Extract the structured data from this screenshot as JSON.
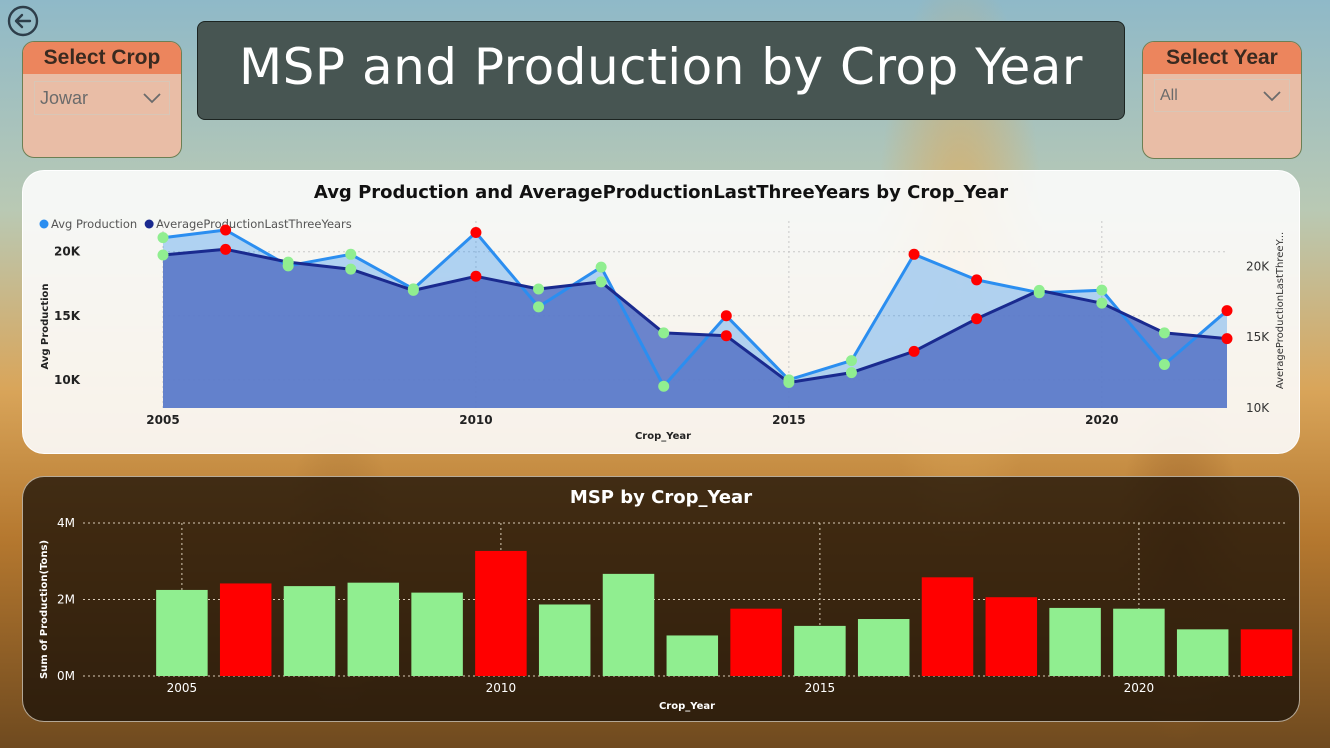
{
  "filters": {
    "crop": {
      "label": "Select Crop",
      "value": "Jowar"
    },
    "year": {
      "label": "Select Year",
      "value": "All"
    }
  },
  "header": {
    "title": "MSP and Production by Crop Year"
  },
  "colors": {
    "avg_production": "#2b8ef0",
    "avg_last_three": "#1a2a8f",
    "area_fill": "#5b78c8",
    "good": "#90ee90",
    "bad": "#ff0000"
  },
  "chart_data": [
    {
      "type": "line",
      "title": "Avg Production and AverageProductionLastThreeYears by Crop_Year",
      "xlabel": "Crop_Year",
      "ylabel": "Avg Production",
      "y2label": "AverageProductionLastThreeY...",
      "x": [
        2005,
        2006,
        2007,
        2008,
        2009,
        2010,
        2011,
        2012,
        2013,
        2014,
        2015,
        2016,
        2017,
        2018,
        2019,
        2020,
        2021,
        2022
      ],
      "x_ticks": [
        "2005",
        "2010",
        "2015",
        "2020"
      ],
      "y_ticks": [
        "10K",
        "15K",
        "20K"
      ],
      "y2_ticks": [
        "10K",
        "15K",
        "20K"
      ],
      "ylim": [
        7800,
        22400
      ],
      "y2lim": [
        10000,
        23200
      ],
      "legend_position": "top-left",
      "series": [
        {
          "name": "Avg Production",
          "values": [
            21100,
            21700,
            18900,
            19800,
            17100,
            21500,
            15700,
            18800,
            9500,
            15000,
            10000,
            11500,
            19800,
            17800,
            16800,
            17000,
            11200,
            15400
          ],
          "marker_status": [
            "good",
            "bad",
            "good",
            "good",
            "good",
            "bad",
            "good",
            "good",
            "good",
            "bad",
            "good",
            "good",
            "bad",
            "bad",
            "good",
            "good",
            "good",
            "bad"
          ]
        },
        {
          "name": "AverageProductionLastThreeYears",
          "values": [
            20800,
            21200,
            20300,
            19800,
            18300,
            19300,
            18400,
            18900,
            15300,
            15100,
            11800,
            12500,
            14000,
            16300,
            18300,
            17400,
            15300,
            14900
          ],
          "marker_status": [
            "good",
            "bad",
            "good",
            "good",
            "good",
            "bad",
            "good",
            "good",
            "good",
            "bad",
            "good",
            "good",
            "bad",
            "bad",
            "good",
            "good",
            "good",
            "bad"
          ]
        }
      ]
    },
    {
      "type": "bar",
      "title": "MSP by Crop_Year",
      "xlabel": "Crop_Year",
      "ylabel": "Sum of Production(Tons)",
      "categories": [
        2005,
        2006,
        2007,
        2008,
        2009,
        2010,
        2011,
        2012,
        2013,
        2014,
        2015,
        2016,
        2017,
        2018,
        2019,
        2020,
        2021,
        2022
      ],
      "x_ticks": [
        "2005",
        "2010",
        "2015",
        "2020"
      ],
      "y_ticks": [
        "0M",
        "2M",
        "4M"
      ],
      "ylim": [
        0,
        4000000
      ],
      "values": [
        2250000,
        2420000,
        2350000,
        2440000,
        2180000,
        3270000,
        1870000,
        2670000,
        1060000,
        1760000,
        1310000,
        1490000,
        2580000,
        2060000,
        1780000,
        1760000,
        1220000,
        1220000
      ],
      "bar_status": [
        "good",
        "bad",
        "good",
        "good",
        "good",
        "bad",
        "good",
        "good",
        "good",
        "bad",
        "good",
        "good",
        "bad",
        "bad",
        "good",
        "good",
        "good",
        "bad"
      ]
    }
  ]
}
